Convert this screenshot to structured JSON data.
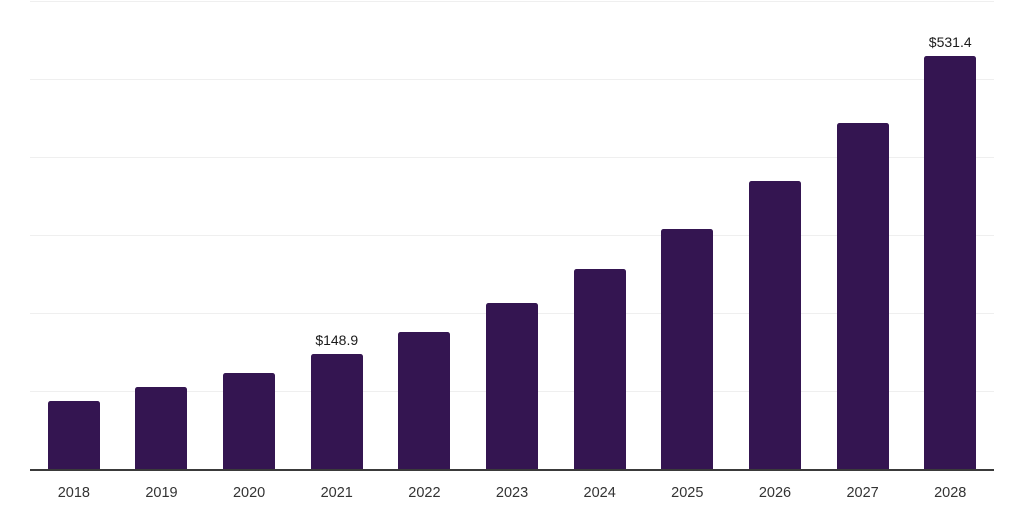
{
  "chart_data": {
    "type": "bar",
    "title": "",
    "xlabel": "",
    "ylabel": "",
    "categories": [
      "2018",
      "2019",
      "2020",
      "2021",
      "2022",
      "2023",
      "2024",
      "2025",
      "2026",
      "2027",
      "2028"
    ],
    "values": [
      88.2,
      106.2,
      124.2,
      148.9,
      177.0,
      214.0,
      257.5,
      308.9,
      370.4,
      444.8,
      531.4
    ],
    "data_labels": [
      "",
      "",
      "",
      "$148.9",
      "",
      "",
      "",
      "",
      "",
      "",
      "$531.4"
    ],
    "ylim": [
      0,
      600
    ],
    "gridline_step": 100,
    "grid": true,
    "legend": false,
    "colors": {
      "bar": "#341551",
      "gridline": "#efefef",
      "axis_line": "#3a3a3a",
      "data_label": "#1a1a1a",
      "tick_label": "#333333",
      "background": "#ffffff"
    }
  }
}
